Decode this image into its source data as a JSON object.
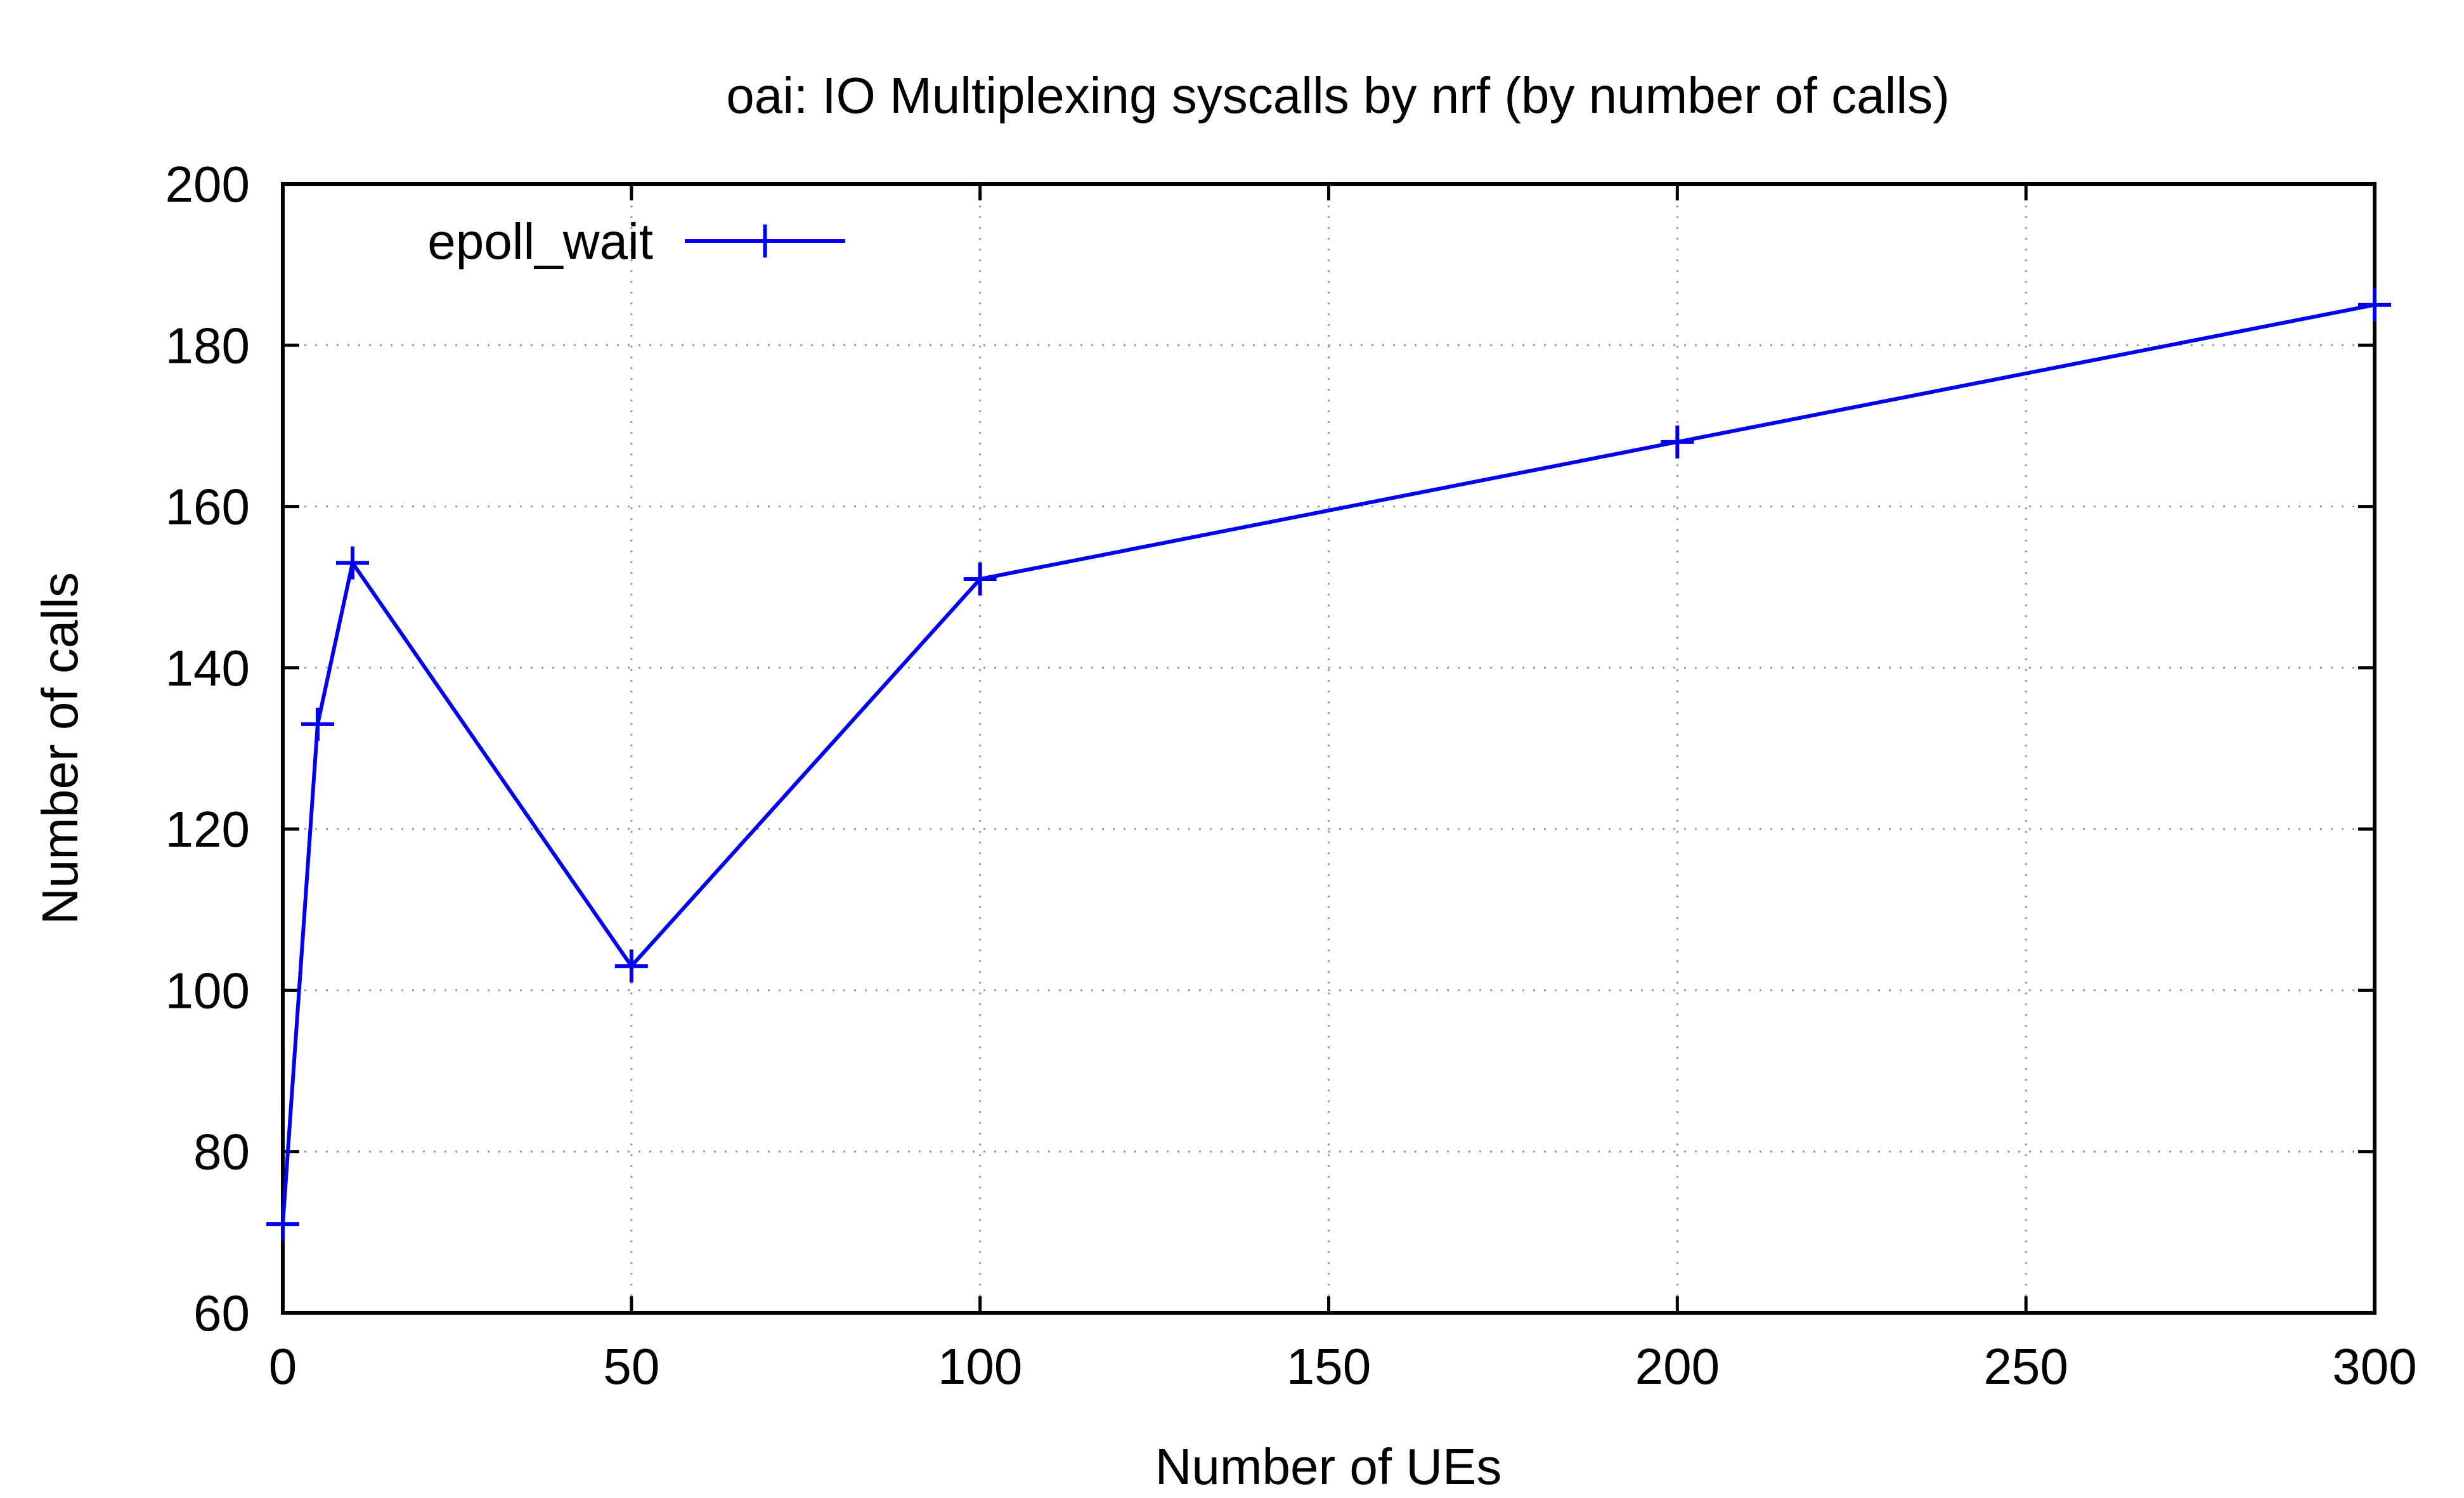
{
  "chart_data": {
    "type": "line",
    "title": "oai: IO Multiplexing syscalls by nrf (by number of calls)",
    "xlabel": "Number of UEs",
    "ylabel": "Number of calls",
    "xlim": [
      0,
      300
    ],
    "ylim": [
      60,
      200
    ],
    "xticks": [
      0,
      50,
      100,
      150,
      200,
      250,
      300
    ],
    "yticks": [
      60,
      80,
      100,
      120,
      140,
      160,
      180,
      200
    ],
    "grid": true,
    "legend_position": "top-left",
    "series": [
      {
        "name": "epoll_wait",
        "color": "#0000ee",
        "marker": "plus",
        "x": [
          0,
          5,
          10,
          50,
          100,
          200,
          300
        ],
        "y": [
          71,
          133,
          153,
          103,
          151,
          168,
          185
        ]
      }
    ]
  }
}
